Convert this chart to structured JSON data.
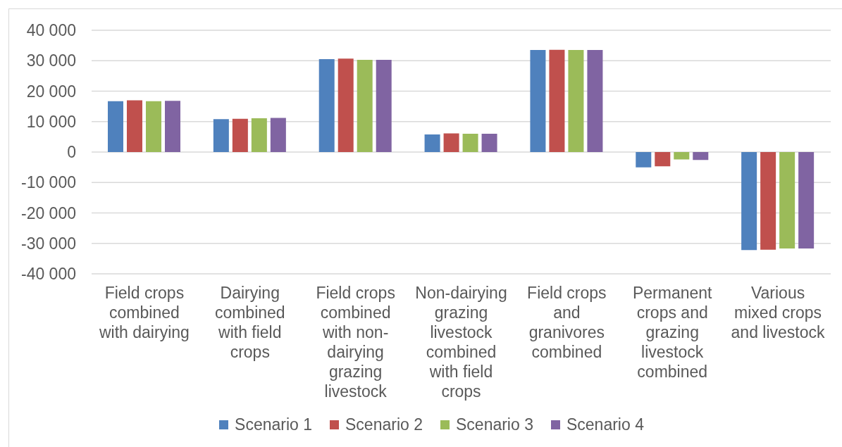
{
  "chart_data": {
    "type": "bar",
    "categories": [
      "Field crops combined with dairying",
      "Dairying combined with field crops",
      "Field crops combined with non-dairying grazing livestock",
      "Non-dairying grazing livestock combined with field crops",
      "Field crops and granivores combined",
      "Permanent crops and grazing livestock combined",
      "Various mixed crops and livestock"
    ],
    "series": [
      {
        "name": "Scenario 1",
        "color": "#4f81bd",
        "values": [
          16700,
          10800,
          30500,
          5800,
          33500,
          -5000,
          -32200
        ]
      },
      {
        "name": "Scenario 2",
        "color": "#c0504d",
        "values": [
          17000,
          10900,
          30700,
          6100,
          33600,
          -4700,
          -32100
        ]
      },
      {
        "name": "Scenario 3",
        "color": "#9bbb59",
        "values": [
          16700,
          11100,
          30300,
          6000,
          33500,
          -2400,
          -31700
        ]
      },
      {
        "name": "Scenario 4",
        "color": "#8064a2",
        "values": [
          16800,
          11200,
          30300,
          6000,
          33500,
          -2600,
          -31700
        ]
      }
    ],
    "ylim": [
      -40000,
      40000
    ],
    "yticks": [
      {
        "value": -40000,
        "label": "-40 000"
      },
      {
        "value": -30000,
        "label": "-30 000"
      },
      {
        "value": -20000,
        "label": "-20 000"
      },
      {
        "value": -10000,
        "label": "-10 000"
      },
      0,
      {
        "value": 10000,
        "label": "10 000"
      },
      {
        "value": 20000,
        "label": "20 000"
      },
      {
        "value": 30000,
        "label": "30 000"
      },
      {
        "value": 40000,
        "label": "40 000"
      }
    ],
    "grid": "y",
    "legend": "bottom"
  }
}
